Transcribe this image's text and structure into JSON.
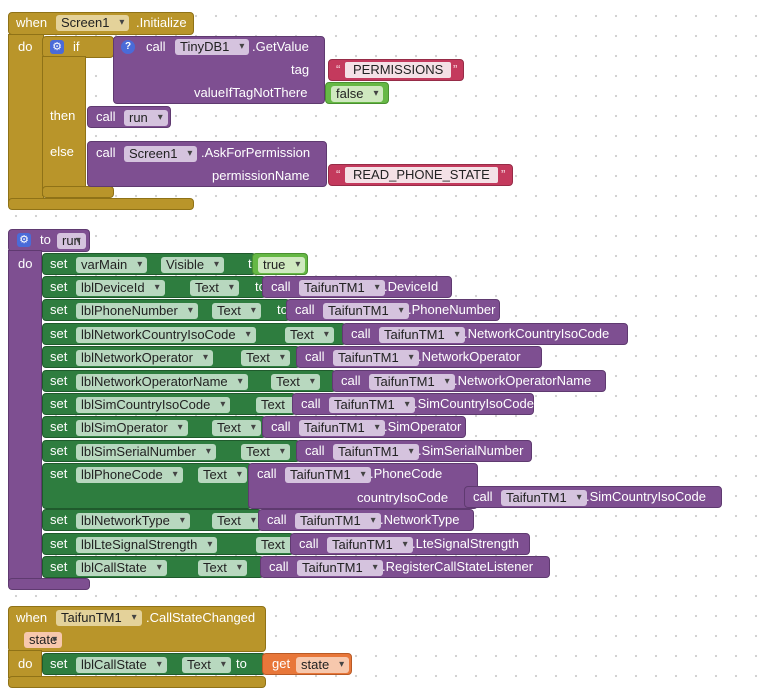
{
  "init_event": {
    "when": "when",
    "component": "Screen1",
    "event": ".Initialize",
    "do": "do",
    "if_label": "if",
    "then_label": "then",
    "else_label": "else",
    "getvalue": {
      "call": "call",
      "component": "TinyDB1",
      "method": ".GetValue",
      "tag_label": "tag",
      "tag_value": "PERMISSIONS",
      "default_label": "valueIfTagNotThere",
      "default_value": "false"
    },
    "then_call": {
      "call": "call",
      "procedure": "run"
    },
    "else_call": {
      "call": "call",
      "component": "Screen1",
      "method": ".AskForPermission",
      "param_label": "permissionName",
      "param_value": "READ_PHONE_STATE"
    }
  },
  "run_proc": {
    "to": "to",
    "name": "run",
    "do": "do",
    "set_label": "set",
    "to_label": "to",
    "call_label": "call",
    "rows": [
      {
        "target": "varMain",
        "prop": "Visible",
        "value_type": "bool",
        "value": "true"
      },
      {
        "target": "lblDeviceId",
        "prop": "Text",
        "component": "TaifunTM1",
        "method": ".DeviceId"
      },
      {
        "target": "lblPhoneNumber",
        "prop": "Text",
        "component": "TaifunTM1",
        "method": ".PhoneNumber"
      },
      {
        "target": "lblNetworkCountryIsoCode",
        "prop": "Text",
        "component": "TaifunTM1",
        "method": ".NetworkCountryIsoCode"
      },
      {
        "target": "lblNetworkOperator",
        "prop": "Text",
        "component": "TaifunTM1",
        "method": ".NetworkOperator"
      },
      {
        "target": "lblNetworkOperatorName",
        "prop": "Text",
        "component": "TaifunTM1",
        "method": ".NetworkOperatorName"
      },
      {
        "target": "lblSimCountryIsoCode",
        "prop": "Text",
        "component": "TaifunTM1",
        "method": ".SimCountryIsoCode"
      },
      {
        "target": "lblSimOperator",
        "prop": "Text",
        "component": "TaifunTM1",
        "method": ".SimOperator"
      },
      {
        "target": "lblSimSerialNumber",
        "prop": "Text",
        "component": "TaifunTM1",
        "method": ".SimSerialNumber"
      },
      {
        "target": "lblPhoneCode",
        "prop": "Text",
        "component": "TaifunTM1",
        "method": ".PhoneCode",
        "arg_label": "countryIsoCode",
        "arg_component": "TaifunTM1",
        "arg_method": ".SimCountryIsoCode"
      },
      {
        "target": "lblNetworkType",
        "prop": "Text",
        "component": "TaifunTM1",
        "method": ".NetworkType"
      },
      {
        "target": "lblLteSignalStrength",
        "prop": "Text",
        "component": "TaifunTM1",
        "method": ".LteSignalStrength"
      },
      {
        "target": "lblCallState",
        "prop": "Text",
        "component": "TaifunTM1",
        "method": ".RegisterCallStateListener"
      }
    ]
  },
  "callstate_event": {
    "when": "when",
    "component": "TaifunTM1",
    "event": ".CallStateChanged",
    "param": "state",
    "do": "do",
    "set_label": "set",
    "target": "lblCallState",
    "prop": "Text",
    "to_label": "to",
    "get_label": "get",
    "get_var": "state"
  }
}
